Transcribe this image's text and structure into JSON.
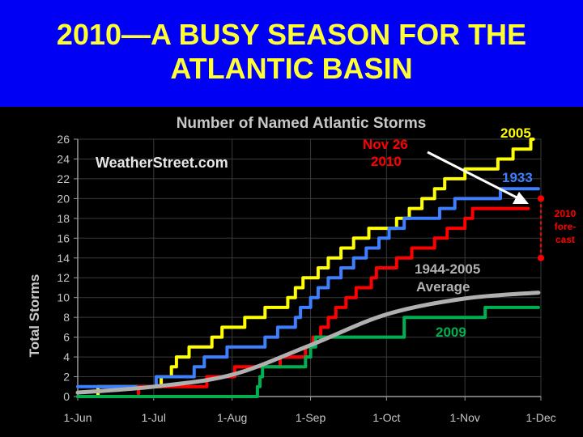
{
  "slide": {
    "title": "2010—A BUSY SEASON FOR  THE\nATLANTIC BASIN"
  },
  "chart_data": {
    "type": "line",
    "title": "Number of Named Atlantic Storms",
    "watermark": "WeatherStreet.com",
    "ylabel": "Total Storms",
    "xlabel": "",
    "x_ticks": [
      "1-Jun",
      "1-Jul",
      "1-Aug",
      "1-Sep",
      "1-Oct",
      "1-Nov",
      "1-Dec"
    ],
    "x_range": [
      "1-Jun",
      "1-Dec"
    ],
    "ylim": [
      0,
      26
    ],
    "y_ticks": [
      0,
      2,
      4,
      6,
      8,
      10,
      12,
      14,
      16,
      18,
      20,
      22,
      24,
      26
    ],
    "grid": true,
    "series": [
      {
        "name": "2005",
        "color": "#ffff00",
        "step": true,
        "points": [
          [
            "1-Jun",
            0
          ],
          [
            "9-Jun",
            1
          ],
          [
            "1-Jul",
            1
          ],
          [
            "4-Jul",
            2
          ],
          [
            "8-Jul",
            3
          ],
          [
            "10-Jul",
            4
          ],
          [
            "15-Jul",
            5
          ],
          [
            "24-Jul",
            6
          ],
          [
            "28-Jul",
            7
          ],
          [
            "6-Aug",
            8
          ],
          [
            "14-Aug",
            9
          ],
          [
            "23-Aug",
            10
          ],
          [
            "26-Aug",
            11
          ],
          [
            "29-Aug",
            12
          ],
          [
            "4-Sep",
            13
          ],
          [
            "8-Sep",
            14
          ],
          [
            "13-Sep",
            15
          ],
          [
            "18-Sep",
            16
          ],
          [
            "24-Sep",
            17
          ],
          [
            "5-Oct",
            18
          ],
          [
            "10-Oct",
            19
          ],
          [
            "15-Oct",
            20
          ],
          [
            "20-Oct",
            21
          ],
          [
            "24-Oct",
            22
          ],
          [
            "1-Nov",
            23
          ],
          [
            "14-Nov",
            24
          ],
          [
            "20-Nov",
            25
          ],
          [
            "27-Nov",
            26
          ],
          [
            "28-Nov",
            26
          ]
        ]
      },
      {
        "name": "1933",
        "color": "#3d7fff",
        "step": true,
        "points": [
          [
            "1-Jun",
            1
          ],
          [
            "1-Jul",
            1
          ],
          [
            "2-Jul",
            2
          ],
          [
            "17-Jul",
            3
          ],
          [
            "21-Jul",
            4
          ],
          [
            "30-Jul",
            5
          ],
          [
            "14-Aug",
            6
          ],
          [
            "19-Aug",
            7
          ],
          [
            "26-Aug",
            8
          ],
          [
            "28-Aug",
            9
          ],
          [
            "1-Sep",
            10
          ],
          [
            "4-Sep",
            11
          ],
          [
            "8-Sep",
            12
          ],
          [
            "13-Sep",
            13
          ],
          [
            "18-Sep",
            14
          ],
          [
            "23-Sep",
            15
          ],
          [
            "28-Sep",
            16
          ],
          [
            "2-Oct",
            17
          ],
          [
            "8-Oct",
            18
          ],
          [
            "22-Oct",
            19
          ],
          [
            "28-Oct",
            20
          ],
          [
            "15-Nov",
            21
          ],
          [
            "30-Nov",
            21
          ]
        ]
      },
      {
        "name": "Nov 26 2010",
        "color": "#ff0000",
        "step": true,
        "points": [
          [
            "1-Jun",
            0
          ],
          [
            "25-Jun",
            1
          ],
          [
            "22-Jul",
            2
          ],
          [
            "2-Aug",
            3
          ],
          [
            "20-Aug",
            4
          ],
          [
            "30-Aug",
            5
          ],
          [
            "2-Sep",
            6
          ],
          [
            "5-Sep",
            7
          ],
          [
            "8-Sep",
            8
          ],
          [
            "11-Sep",
            9
          ],
          [
            "15-Sep",
            10
          ],
          [
            "19-Sep",
            11
          ],
          [
            "25-Sep",
            12
          ],
          [
            "27-Sep",
            13
          ],
          [
            "5-Oct",
            14
          ],
          [
            "11-Oct",
            15
          ],
          [
            "20-Oct",
            16
          ],
          [
            "25-Oct",
            17
          ],
          [
            "1-Nov",
            18
          ],
          [
            "4-Nov",
            19
          ],
          [
            "26-Nov",
            19
          ]
        ]
      },
      {
        "name": "2009",
        "color": "#00b050",
        "step": true,
        "points": [
          [
            "1-Jun",
            0
          ],
          [
            "1-Aug",
            0
          ],
          [
            "11-Aug",
            0
          ],
          [
            "11-Aug",
            1
          ],
          [
            "12-Aug",
            2
          ],
          [
            "13-Aug",
            3
          ],
          [
            "17-Aug",
            3
          ],
          [
            "30-Aug",
            4
          ],
          [
            "1-Sep",
            5
          ],
          [
            "3-Sep",
            6
          ],
          [
            "30-Sep",
            6
          ],
          [
            "8-Oct",
            8
          ],
          [
            "4-Nov",
            8
          ],
          [
            "9-Nov",
            9
          ],
          [
            "30-Nov",
            9
          ]
        ]
      },
      {
        "name": "1944-2005 Average",
        "color": "#b0b0b0",
        "step": false,
        "points": [
          [
            "1-Jun",
            0.4
          ],
          [
            "1-Jul",
            1.0
          ],
          [
            "1-Aug",
            2.2
          ],
          [
            "1-Sep",
            5.2
          ],
          [
            "1-Oct",
            8.3
          ],
          [
            "1-Nov",
            9.9
          ],
          [
            "30-Nov",
            10.5
          ]
        ]
      }
    ],
    "annotations": [
      {
        "text": "2005",
        "color": "#ffff00"
      },
      {
        "text": "1933",
        "color": "#3d7fff"
      },
      {
        "text": "Nov 26",
        "color": "#ff0000"
      },
      {
        "text": "2010",
        "color": "#ff0000"
      },
      {
        "text": "1944-2005",
        "color": "#b0b0b0"
      },
      {
        "text": "Average",
        "color": "#b0b0b0"
      },
      {
        "text": "2009",
        "color": "#00b050"
      },
      {
        "text": "2010",
        "color": "#ff0000"
      },
      {
        "text": "fore-",
        "color": "#ff0000"
      },
      {
        "text": "cast",
        "color": "#ff0000"
      }
    ],
    "forecast_range": [
      14,
      20
    ]
  }
}
